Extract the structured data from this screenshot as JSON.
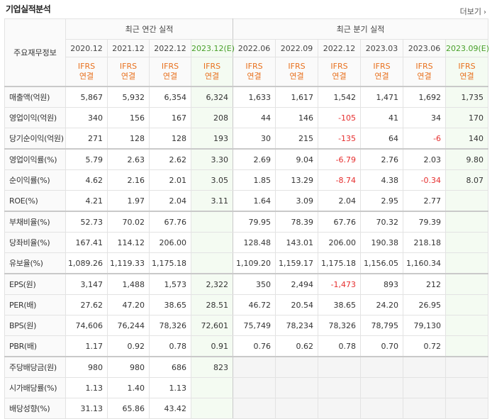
{
  "title": "기업실적분석",
  "more_label": "더보기",
  "corner_label": "주요재무정보",
  "annual_header": "최근 연간 실적",
  "quarter_header": "최근 분기 실적",
  "annual_periods": [
    "2020.12",
    "2021.12",
    "2022.12",
    "2023.12(E)"
  ],
  "quarter_periods": [
    "2022.06",
    "2022.09",
    "2022.12",
    "2023.03",
    "2023.06",
    "2023.09(E)"
  ],
  "ifrs_line1": "IFRS",
  "ifrs_line2": "연결",
  "rows": [
    {
      "label": "매출액(억원)",
      "values": [
        "5,867",
        "5,932",
        "6,354",
        "6,324",
        "1,633",
        "1,617",
        "1,542",
        "1,471",
        "1,692",
        "1,735"
      ]
    },
    {
      "label": "영업이익(억원)",
      "values": [
        "340",
        "156",
        "167",
        "208",
        "44",
        "146",
        "-105",
        "41",
        "34",
        "170"
      ]
    },
    {
      "label": "당기순이익(억원)",
      "values": [
        "271",
        "128",
        "128",
        "193",
        "30",
        "215",
        "-135",
        "64",
        "-6",
        "140"
      ]
    },
    {
      "label": "영업이익률(%)",
      "values": [
        "5.79",
        "2.63",
        "2.62",
        "3.30",
        "2.69",
        "9.04",
        "-6.79",
        "2.76",
        "2.03",
        "9.80"
      ]
    },
    {
      "label": "순이익률(%)",
      "values": [
        "4.62",
        "2.16",
        "2.01",
        "3.05",
        "1.85",
        "13.29",
        "-8.74",
        "4.38",
        "-0.34",
        "8.07"
      ]
    },
    {
      "label": "ROE(%)",
      "values": [
        "4.21",
        "1.97",
        "2.04",
        "3.11",
        "1.64",
        "3.09",
        "2.04",
        "2.95",
        "2.77",
        ""
      ]
    },
    {
      "label": "부채비율(%)",
      "values": [
        "52.73",
        "70.02",
        "67.76",
        "",
        "79.95",
        "78.39",
        "67.76",
        "70.32",
        "79.39",
        ""
      ]
    },
    {
      "label": "당좌비율(%)",
      "values": [
        "167.41",
        "114.12",
        "206.00",
        "",
        "128.48",
        "143.01",
        "206.00",
        "190.38",
        "218.18",
        ""
      ]
    },
    {
      "label": "유보율(%)",
      "values": [
        "1,089.26",
        "1,119.33",
        "1,175.18",
        "",
        "1,109.20",
        "1,159.17",
        "1,175.18",
        "1,156.05",
        "1,160.34",
        ""
      ]
    },
    {
      "label": "EPS(원)",
      "values": [
        "3,147",
        "1,488",
        "1,573",
        "2,322",
        "350",
        "2,494",
        "-1,473",
        "893",
        "212",
        ""
      ]
    },
    {
      "label": "PER(배)",
      "values": [
        "27.62",
        "47.20",
        "38.65",
        "28.51",
        "46.72",
        "20.54",
        "38.65",
        "24.20",
        "26.95",
        ""
      ]
    },
    {
      "label": "BPS(원)",
      "values": [
        "74,606",
        "76,244",
        "78,326",
        "72,601",
        "75,749",
        "78,234",
        "78,326",
        "78,795",
        "79,130",
        ""
      ]
    },
    {
      "label": "PBR(배)",
      "values": [
        "1.17",
        "0.92",
        "0.78",
        "0.91",
        "0.76",
        "0.62",
        "0.78",
        "0.70",
        "0.72",
        ""
      ]
    },
    {
      "label": "주당배당금(원)",
      "values": [
        "980",
        "980",
        "686",
        "823",
        "",
        "",
        "",
        "",
        "",
        ""
      ]
    },
    {
      "label": "시가배당률(%)",
      "values": [
        "1.13",
        "1.40",
        "1.13",
        "",
        "",
        "",
        "",
        "",
        "",
        ""
      ]
    },
    {
      "label": "배당성향(%)",
      "values": [
        "31.13",
        "65.86",
        "43.42",
        "",
        "",
        "",
        "",
        "",
        "",
        ""
      ]
    }
  ],
  "colors": {
    "accent_orange": "#e8711f",
    "negative": "#e62e2e",
    "estimate_green": "#48a02a"
  }
}
